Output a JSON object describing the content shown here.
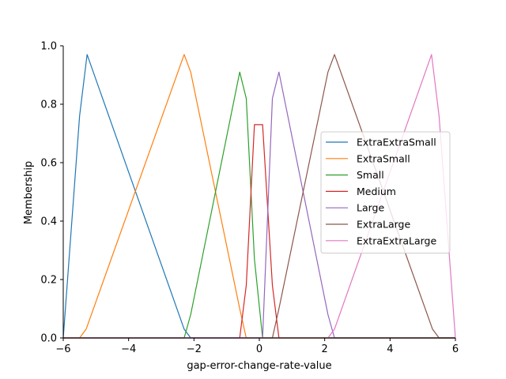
{
  "chart_data": {
    "type": "line",
    "xlabel": "gap-error-change-rate-value",
    "ylabel": "Membership",
    "xlim": [
      -6,
      6
    ],
    "ylim": [
      0,
      1.0
    ],
    "x_ticks": [
      -6,
      -4,
      -2,
      0,
      2,
      4,
      6
    ],
    "y_ticks": [
      0.0,
      0.2,
      0.4,
      0.6,
      0.8,
      1.0
    ],
    "x_tick_labels": [
      "−6",
      "−4",
      "−2",
      "0",
      "2",
      "4",
      "6"
    ],
    "y_tick_labels": [
      "0.0",
      "0.2",
      "0.4",
      "0.6",
      "0.8",
      "1.0"
    ],
    "grid": false,
    "legend_position": "center-right",
    "series": [
      {
        "name": "ExtraExtraSmall",
        "color": "#1f77b4",
        "points": [
          [
            -6.0,
            0.0
          ],
          [
            -5.5,
            0.76
          ],
          [
            -5.27,
            0.97
          ],
          [
            -2.3,
            0.03
          ],
          [
            -2.1,
            0.0
          ],
          [
            6.0,
            0.0
          ]
        ]
      },
      {
        "name": "ExtraSmall",
        "color": "#ff7f0e",
        "points": [
          [
            -6.0,
            0.0
          ],
          [
            -5.5,
            0.0
          ],
          [
            -5.3,
            0.03
          ],
          [
            -2.3,
            0.97
          ],
          [
            -2.1,
            0.91
          ],
          [
            -0.6,
            0.1
          ],
          [
            -0.4,
            0.0
          ],
          [
            6.0,
            0.0
          ]
        ]
      },
      {
        "name": "Small",
        "color": "#2ca02c",
        "points": [
          [
            -6.0,
            0.0
          ],
          [
            -2.3,
            0.0
          ],
          [
            -2.1,
            0.08
          ],
          [
            -0.6,
            0.91
          ],
          [
            -0.4,
            0.82
          ],
          [
            -0.15,
            0.27
          ],
          [
            0.1,
            0.0
          ],
          [
            6.0,
            0.0
          ]
        ]
      },
      {
        "name": "Medium",
        "color": "#d62728",
        "points": [
          [
            -6.0,
            0.0
          ],
          [
            -0.6,
            0.0
          ],
          [
            -0.4,
            0.18
          ],
          [
            -0.15,
            0.73
          ],
          [
            0.1,
            0.73
          ],
          [
            0.4,
            0.18
          ],
          [
            0.6,
            0.0
          ],
          [
            6.0,
            0.0
          ]
        ]
      },
      {
        "name": "Large",
        "color": "#9467bd",
        "points": [
          [
            -6.0,
            0.0
          ],
          [
            0.1,
            0.0
          ],
          [
            0.4,
            0.82
          ],
          [
            0.6,
            0.91
          ],
          [
            2.1,
            0.08
          ],
          [
            2.3,
            0.0
          ],
          [
            6.0,
            0.0
          ]
        ]
      },
      {
        "name": "ExtraLarge",
        "color": "#8c564b",
        "points": [
          [
            -6.0,
            0.0
          ],
          [
            0.4,
            0.0
          ],
          [
            0.6,
            0.1
          ],
          [
            2.1,
            0.91
          ],
          [
            2.3,
            0.97
          ],
          [
            5.3,
            0.03
          ],
          [
            5.5,
            0.0
          ],
          [
            6.0,
            0.0
          ]
        ]
      },
      {
        "name": "ExtraExtraLarge",
        "color": "#e377c2",
        "points": [
          [
            -6.0,
            0.0
          ],
          [
            2.1,
            0.0
          ],
          [
            2.3,
            0.03
          ],
          [
            5.27,
            0.97
          ],
          [
            5.5,
            0.76
          ],
          [
            6.0,
            0.0
          ]
        ]
      }
    ]
  }
}
